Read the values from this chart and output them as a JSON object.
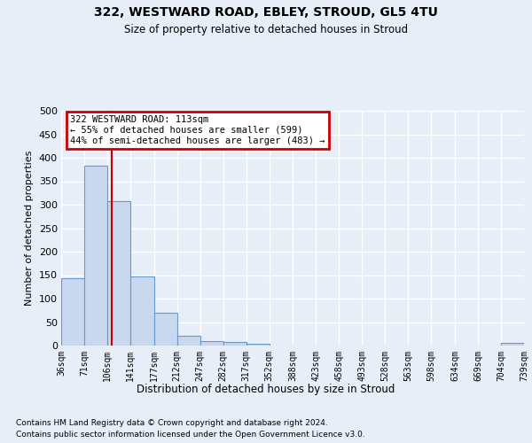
{
  "title": "322, WESTWARD ROAD, EBLEY, STROUD, GL5 4TU",
  "subtitle": "Size of property relative to detached houses in Stroud",
  "xlabel": "Distribution of detached houses by size in Stroud",
  "ylabel": "Number of detached properties",
  "footer_line1": "Contains HM Land Registry data © Crown copyright and database right 2024.",
  "footer_line2": "Contains public sector information licensed under the Open Government Licence v3.0.",
  "bin_edges": [
    36,
    71,
    106,
    141,
    177,
    212,
    247,
    282,
    317,
    352,
    388,
    423,
    458,
    493,
    528,
    563,
    598,
    634,
    669,
    704,
    739
  ],
  "bar_heights": [
    143,
    383,
    307,
    148,
    69,
    21,
    10,
    7,
    4,
    0,
    0,
    0,
    0,
    0,
    0,
    0,
    0,
    0,
    0,
    5
  ],
  "bar_color": "#c8d8ee",
  "bar_edge_color": "#6699cc",
  "property_size": 113,
  "vline_color": "#cc0000",
  "annotation_text": "322 WESTWARD ROAD: 113sqm\n← 55% of detached houses are smaller (599)\n44% of semi-detached houses are larger (483) →",
  "annotation_box_color": "#cc0000",
  "ylim": [
    0,
    500
  ],
  "yticks": [
    0,
    50,
    100,
    150,
    200,
    250,
    300,
    350,
    400,
    450,
    500
  ],
  "background_color": "#e8eef8",
  "plot_bg_color": "#e8eef8",
  "grid_color": "#ffffff"
}
